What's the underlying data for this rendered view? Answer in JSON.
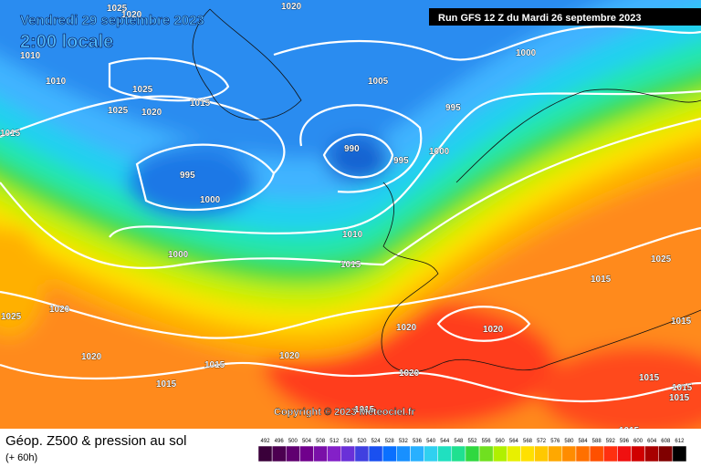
{
  "header": {
    "date": "Vendredi 29 septembre 2023",
    "time": "2:00 locale",
    "run": "Run GFS 12 Z du Mardi 26 septembre 2023"
  },
  "isobars": [
    "1025",
    "1020",
    "1020",
    "1010",
    "1010",
    "1025",
    "1015",
    "1025",
    "1020",
    "1005",
    "1000",
    "995",
    "1015",
    "990",
    "995",
    "1000",
    "995",
    "1000",
    "1010",
    "1000",
    "1015",
    "1025",
    "1015",
    "1025",
    "1020",
    "1020",
    "1020",
    "1015",
    "1020",
    "1020",
    "1015",
    "1020",
    "1015",
    "1015",
    "1015",
    "1015",
    "1015",
    "1015"
  ],
  "copyright": "Copyright © 2023 Meteociel.fr",
  "footer": {
    "title": "Géop. Z500 & pression au sol",
    "lead": "(+ 60h)"
  },
  "legend": {
    "scale": [
      "492",
      "496",
      "500",
      "504",
      "508",
      "512",
      "516",
      "520",
      "524",
      "528",
      "532",
      "536",
      "540",
      "544",
      "548",
      "552",
      "556",
      "560",
      "564",
      "568",
      "572",
      "576",
      "580",
      "584",
      "588",
      "592",
      "596",
      "600",
      "604",
      "608",
      "612"
    ]
  }
}
